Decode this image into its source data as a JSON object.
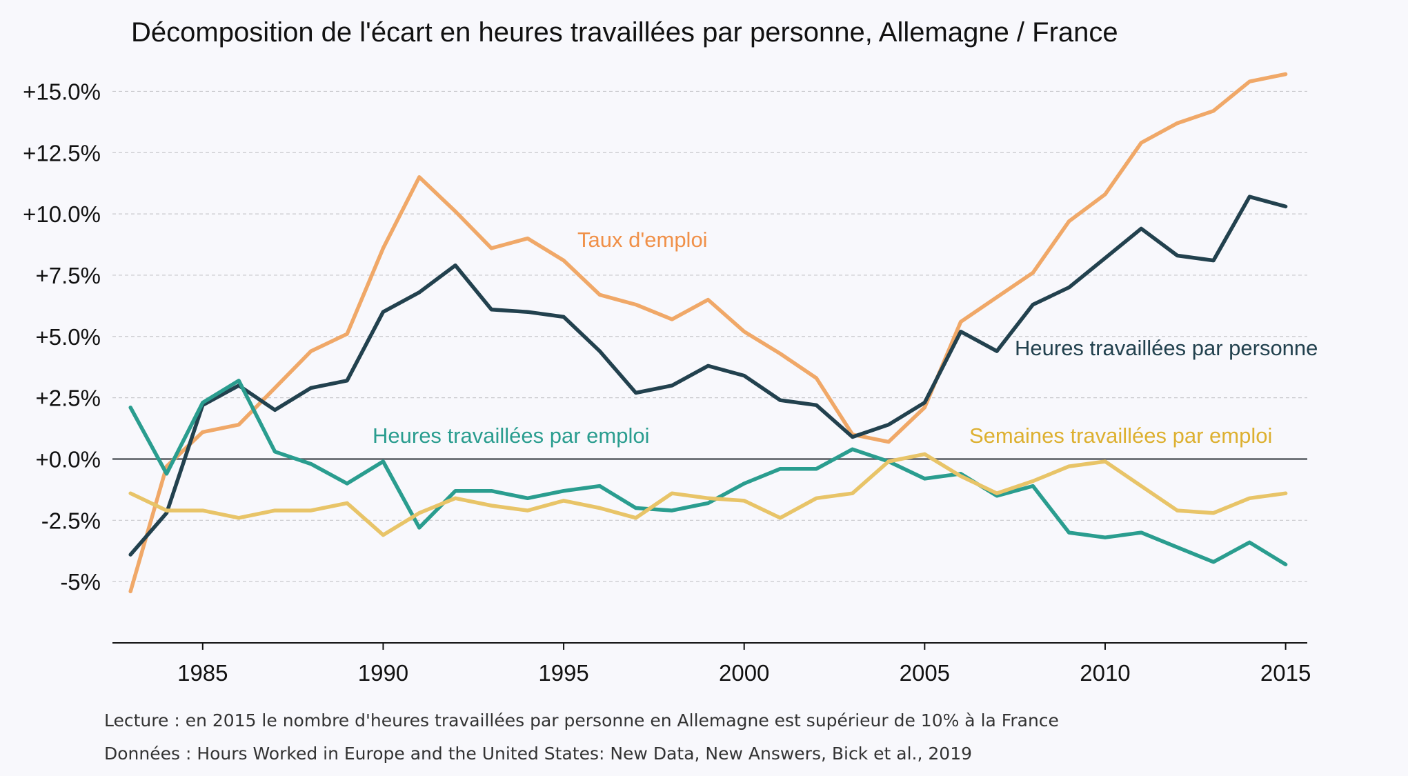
{
  "chart_data": {
    "type": "line",
    "title": "Décomposition de l'écart en heures travaillées par personne, Allemagne / France",
    "xlabel": "",
    "ylabel": "",
    "xlim": [
      1982.5,
      2015.6
    ],
    "ylim": [
      -7.5,
      16.7
    ],
    "x_ticks": [
      1985,
      1990,
      1995,
      2000,
      2005,
      2010,
      2015
    ],
    "y_ticks": [
      {
        "value": 15,
        "label": "+15.0%"
      },
      {
        "value": 12.5,
        "label": "+12.5%"
      },
      {
        "value": 10,
        "label": "+10.0%"
      },
      {
        "value": 7.5,
        "label": "+7.5%"
      },
      {
        "value": 5,
        "label": "+5.0%"
      },
      {
        "value": 2.5,
        "label": "+2.5%"
      },
      {
        "value": 0,
        "label": "+0.0%"
      },
      {
        "value": -2.5,
        "label": "-2.5%"
      },
      {
        "value": -5,
        "label": "-5%"
      }
    ],
    "grid": true,
    "zero_line": true,
    "x": [
      1983,
      1984,
      1985,
      1986,
      1987,
      1988,
      1989,
      1990,
      1991,
      1992,
      1993,
      1994,
      1995,
      1996,
      1997,
      1998,
      1999,
      2000,
      2001,
      2002,
      2003,
      2004,
      2005,
      2006,
      2007,
      2008,
      2009,
      2010,
      2011,
      2012,
      2013,
      2014,
      2015
    ],
    "series": [
      {
        "name": "Taux d'emploi",
        "color": "#f0a868",
        "label_color": "#f09048",
        "values": [
          -5.4,
          -0.3,
          1.1,
          1.4,
          2.9,
          4.4,
          5.1,
          8.6,
          11.5,
          10.1,
          8.6,
          9.0,
          8.1,
          6.7,
          6.3,
          5.7,
          6.5,
          5.2,
          4.3,
          3.3,
          1.0,
          0.7,
          2.1,
          5.6,
          6.6,
          7.6,
          9.7,
          10.8,
          12.9,
          13.7,
          14.2,
          15.4,
          15.7
        ]
      },
      {
        "name": "Heures travaillées par personne",
        "color": "#22414e",
        "label_color": "#22414e",
        "values": [
          -3.9,
          -2.2,
          2.2,
          3.0,
          2.0,
          2.9,
          3.2,
          6.0,
          6.8,
          7.9,
          6.1,
          6.0,
          5.8,
          4.4,
          2.7,
          3.0,
          3.8,
          3.4,
          2.4,
          2.2,
          0.9,
          1.4,
          2.3,
          5.2,
          4.4,
          6.3,
          7.0,
          8.2,
          9.4,
          8.3,
          8.1,
          10.7,
          10.3
        ]
      },
      {
        "name": "Heures travaillées par emploi",
        "color": "#2a9d8f",
        "label_color": "#2a9d8f",
        "values": [
          2.1,
          -0.6,
          2.3,
          3.2,
          0.3,
          -0.2,
          -1.0,
          -0.1,
          -2.8,
          -1.3,
          -1.3,
          -1.6,
          -1.3,
          -1.1,
          -2.0,
          -2.1,
          -1.8,
          -1.0,
          -0.4,
          -0.4,
          0.4,
          -0.1,
          -0.8,
          -0.6,
          -1.5,
          -1.1,
          -3.0,
          -3.2,
          -3.0,
          -3.6,
          -4.2,
          -3.4,
          -4.3
        ]
      },
      {
        "name": "Semaines travaillées par emploi",
        "color": "#e8c468",
        "label_color": "#ddb030",
        "values": [
          -1.4,
          -2.1,
          -2.1,
          -2.4,
          -2.1,
          -2.1,
          -1.8,
          -3.1,
          -2.2,
          -1.6,
          -1.9,
          -2.1,
          -1.7,
          -2.0,
          -2.4,
          -1.4,
          -1.6,
          -1.7,
          -2.4,
          -1.6,
          -1.4,
          -0.1,
          0.2,
          -0.7,
          -1.4,
          -0.9,
          -0.3,
          -0.1,
          -1.1,
          -2.1,
          -2.2,
          -1.6,
          -1.4
        ]
      }
    ]
  },
  "captions": {
    "lecture": "Lecture : en 2015 le nombre d'heures travaillées par personne en Allemagne est supérieur de 10% à la France",
    "donnees": "Données : Hours Worked in Europe and the United States: New Data, New Answers, Bick et al., 2019"
  }
}
